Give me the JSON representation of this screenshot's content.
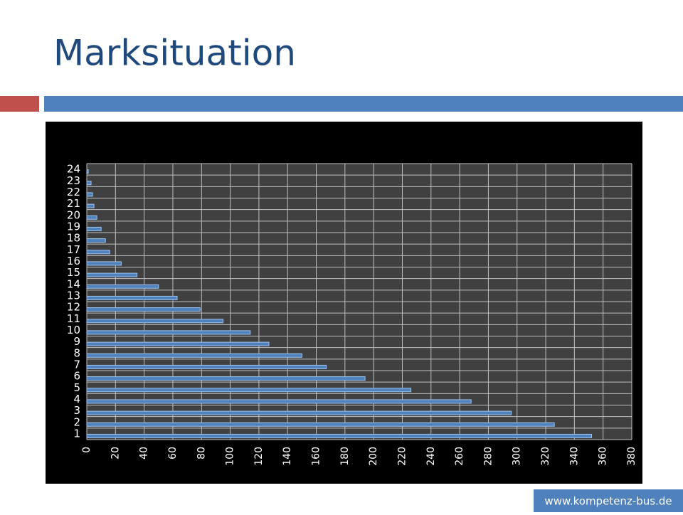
{
  "title": "Marksituation",
  "footer": "www.kompetenz-bus.de",
  "chart_data": {
    "type": "bar",
    "orientation": "horizontal",
    "categories": [
      "1",
      "2",
      "3",
      "4",
      "5",
      "6",
      "7",
      "8",
      "9",
      "10",
      "11",
      "12",
      "13",
      "14",
      "15",
      "16",
      "17",
      "18",
      "19",
      "20",
      "21",
      "22",
      "23",
      "24"
    ],
    "values": [
      352,
      326,
      296,
      268,
      226,
      194,
      167,
      150,
      127,
      114,
      95,
      79,
      63,
      50,
      35,
      24,
      16,
      13,
      10,
      7,
      5,
      4,
      3,
      1
    ],
    "color": "#4f81bd",
    "xlim": [
      0,
      380
    ],
    "xticks": [
      0,
      20,
      40,
      60,
      80,
      100,
      120,
      140,
      160,
      180,
      200,
      220,
      240,
      260,
      280,
      300,
      320,
      340,
      360,
      380
    ],
    "grid": true
  }
}
